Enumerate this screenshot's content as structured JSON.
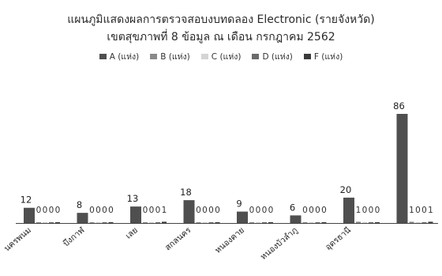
{
  "chart_data": {
    "type": "bar",
    "title": "แผนภูมิแสดงผลการตรวจสอบงบทดลอง Electronic (รายจังหวัด)",
    "subtitle": "เขตสุขภาพที่ 8   ข้อมูล ณ เดือน กรกฎาคม 2562",
    "categories": [
      "นครพนม",
      "บึงกาฬ",
      "เลย",
      "สกลนคร",
      "หนองคาย",
      "หนองบัวลำภู",
      "อุดรธานี",
      ""
    ],
    "series": [
      {
        "name": "A (แห่ง)",
        "color": "#4f4f4f",
        "values": [
          12,
          8,
          13,
          18,
          9,
          6,
          20,
          86
        ],
        "labels": [
          "12",
          "8",
          "13",
          "18",
          "9",
          "6",
          "20",
          "86"
        ]
      },
      {
        "name": "B (แห่ง)",
        "color": "#8a8a8a",
        "values": [
          0,
          0,
          0,
          0,
          0,
          0,
          1,
          1
        ],
        "labels": [
          "0",
          "0",
          "0",
          "0",
          "0",
          "0",
          "1",
          "1"
        ]
      },
      {
        "name": "C (แห่ง)",
        "color": "#d4d4d4",
        "values": [
          0,
          0,
          0,
          0,
          0,
          0,
          0,
          0
        ],
        "labels": [
          "0",
          "0",
          "0",
          "0",
          "0",
          "0",
          "0",
          "0"
        ]
      },
      {
        "name": "D (แห่ง)",
        "color": "#6c6c6c",
        "values": [
          0,
          0,
          0,
          0,
          0,
          0,
          0,
          0
        ],
        "labels": [
          "0",
          "0",
          "0",
          "0",
          "0",
          "0",
          "0",
          "0"
        ]
      },
      {
        "name": "F (แห่ง)",
        "color": "#3a3a3a",
        "values": [
          0,
          0,
          1,
          0,
          0,
          0,
          0,
          1
        ],
        "labels": [
          "0",
          "0",
          "1",
          "0",
          "0",
          "0",
          "0",
          "1"
        ]
      }
    ],
    "ylim": [
      0,
      86
    ],
    "grid": false,
    "legend_position": "top"
  }
}
